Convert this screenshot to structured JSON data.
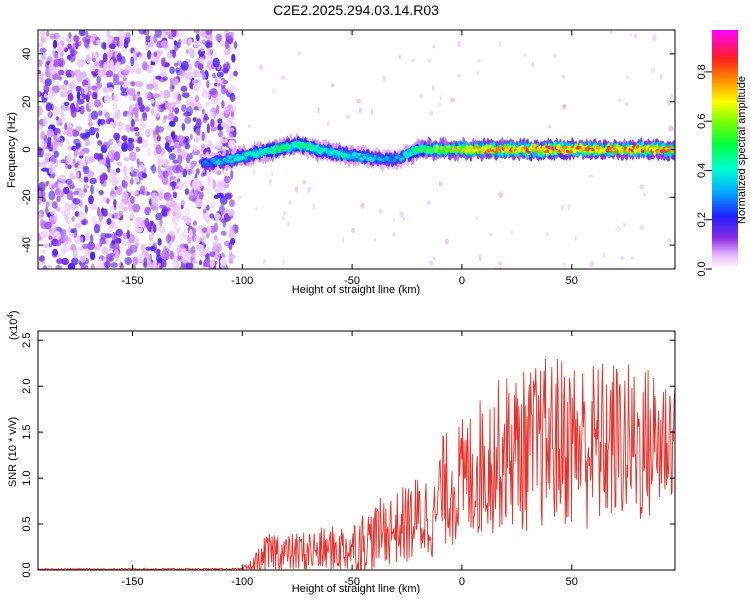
{
  "chart_data": [
    {
      "type": "heatmap",
      "title": "C2E2.2025.294.03.14.R03",
      "xlabel": "Height of straight line (km)",
      "ylabel": "Frequency (Hz)",
      "xlim": [
        -193,
        97
      ],
      "ylim": [
        -50,
        50
      ],
      "xticks": [
        -150,
        -100,
        -50,
        0,
        50
      ],
      "yticks": [
        -40,
        -20,
        0,
        20,
        40
      ],
      "colorbar": {
        "label": "Normalized spectral amplitude",
        "range": [
          0.0,
          0.97
        ],
        "ticks": [
          0.0,
          0.2,
          0.4,
          0.6,
          0.8
        ]
      },
      "features": {
        "noise_region_x": [
          -193,
          -103
        ],
        "signal_start_x": -118,
        "signal_ridge": {
          "x": [
            -118,
            -105,
            -95,
            -85,
            -75,
            -65,
            -55,
            -45,
            -38,
            -30,
            -25,
            -20,
            -10,
            0,
            10,
            20,
            30,
            40,
            50,
            60,
            70,
            80,
            90,
            97
          ],
          "frequency": [
            -6,
            -4,
            -2,
            0,
            2,
            0,
            -2,
            -3,
            -4,
            -4,
            -2,
            0,
            0,
            0,
            0,
            0,
            0,
            0,
            0,
            0,
            0,
            0,
            0,
            0
          ],
          "amplitude": [
            0.3,
            0.4,
            0.45,
            0.5,
            0.5,
            0.45,
            0.45,
            0.4,
            0.35,
            0.35,
            0.4,
            0.55,
            0.65,
            0.75,
            0.8,
            0.85,
            0.85,
            0.9,
            0.85,
            0.85,
            0.8,
            0.85,
            0.85,
            0.8
          ]
        }
      }
    },
    {
      "type": "line",
      "xlabel": "Height of straight line (km)",
      "ylabel": "SNR (10 * v/v)",
      "y_multiplier_label": "(x10",
      "y_multiplier_exp": "4",
      "xlim": [
        -193,
        97
      ],
      "ylim": [
        0.0,
        2.6
      ],
      "xticks": [
        -150,
        -100,
        -50,
        0,
        50
      ],
      "yticks": [
        0.0,
        0.5,
        1.0,
        1.5,
        2.0,
        2.5
      ],
      "ytick_labels": [
        "0.0",
        "0.5",
        "1.0",
        "1.5",
        "2.0",
        "2.5"
      ],
      "series": [
        {
          "name": "SNR",
          "color": "#e8302a",
          "envelope": {
            "x": [
              -193,
              -100,
              -95,
              -90,
              -85,
              -80,
              -70,
              -60,
              -50,
              -45,
              -40,
              -35,
              -30,
              -25,
              -20,
              -15,
              -12,
              -10,
              -5,
              0,
              5,
              10,
              20,
              30,
              40,
              50,
              60,
              70,
              80,
              90,
              97
            ],
            "mean": [
              0.01,
              0.01,
              0.05,
              0.15,
              0.2,
              0.18,
              0.2,
              0.22,
              0.25,
              0.3,
              0.35,
              0.45,
              0.45,
              0.5,
              0.55,
              0.6,
              0.55,
              0.85,
              0.9,
              0.95,
              1.05,
              1.15,
              1.3,
              1.3,
              1.4,
              1.4,
              1.35,
              1.4,
              1.35,
              1.4,
              1.5
            ],
            "spread": [
              0.005,
              0.01,
              0.1,
              0.2,
              0.25,
              0.2,
              0.25,
              0.25,
              0.3,
              0.35,
              0.35,
              0.4,
              0.4,
              0.45,
              0.5,
              0.5,
              0.4,
              0.6,
              0.65,
              0.7,
              0.75,
              0.8,
              0.85,
              0.9,
              0.95,
              0.95,
              0.95,
              0.9,
              0.9,
              0.85,
              0.7
            ]
          }
        }
      ]
    }
  ]
}
